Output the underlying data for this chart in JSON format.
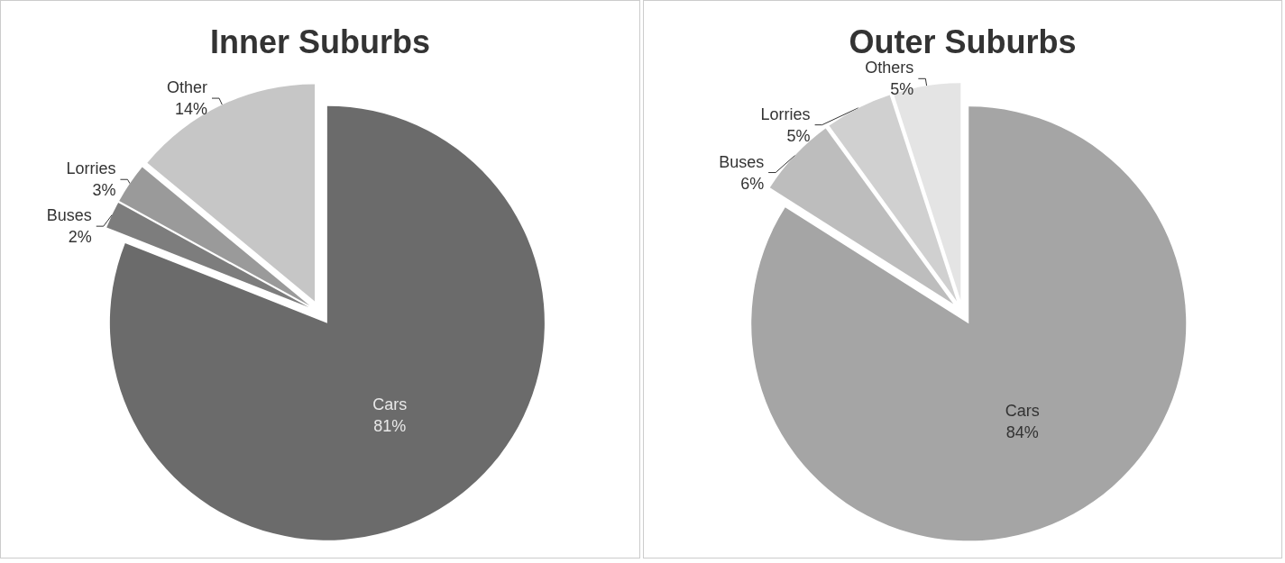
{
  "chart_data": [
    {
      "type": "pie",
      "title": "Inner Suburbs",
      "categories": [
        "Cars",
        "Buses",
        "Lorries",
        "Other"
      ],
      "values": [
        81,
        2,
        3,
        14
      ],
      "value_labels": [
        "81%",
        "2%",
        "3%",
        "14%"
      ],
      "colors": [
        "#6b6b6b",
        "#7d7d7d",
        "#9a9a9a",
        "#c6c6c6"
      ]
    },
    {
      "type": "pie",
      "title": "Outer Suburbs",
      "categories": [
        "Cars",
        "Buses",
        "Lorries",
        "Others"
      ],
      "values": [
        84,
        6,
        5,
        5
      ],
      "value_labels": [
        "84%",
        "6%",
        "5%",
        "5%"
      ],
      "colors": [
        "#a5a5a5",
        "#bdbdbd",
        "#d0d0d0",
        "#e4e4e4"
      ]
    }
  ]
}
